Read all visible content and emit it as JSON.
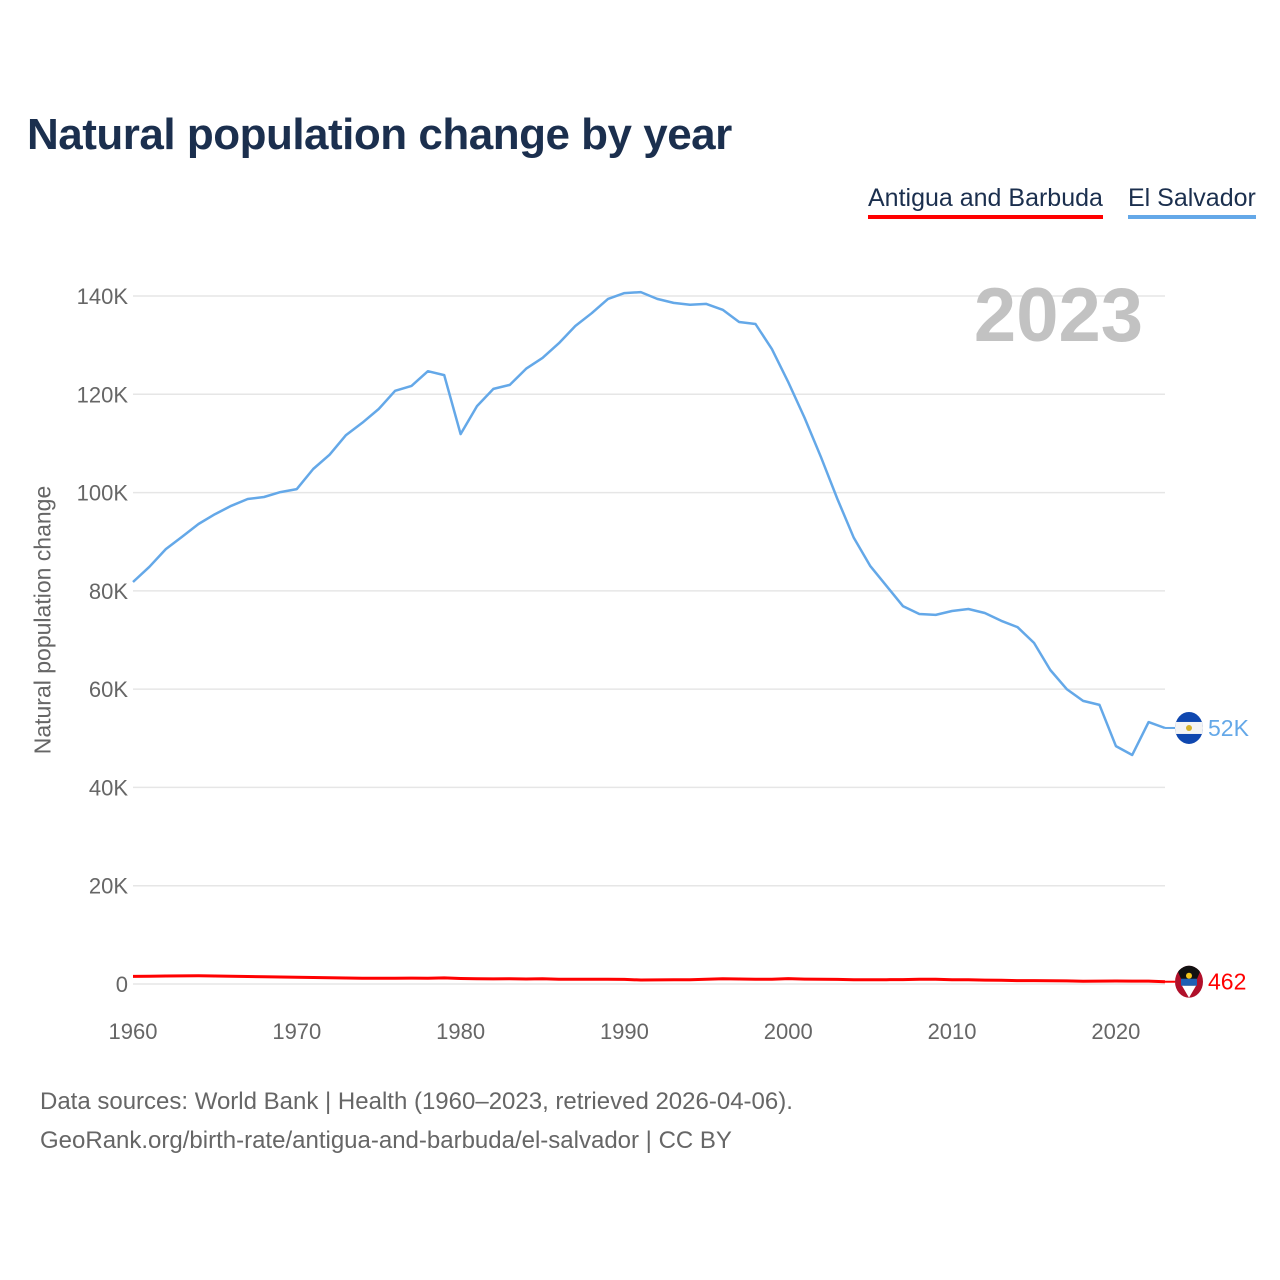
{
  "chart_data": {
    "type": "line",
    "title": "Natural population change by year",
    "xlabel": "",
    "ylabel": "Natural population change",
    "xlim": [
      1960,
      2023
    ],
    "ylim": [
      0,
      140000
    ],
    "grid": true,
    "legend_position": "top-right",
    "x_ticks": [
      "1960",
      "1970",
      "1980",
      "1990",
      "2000",
      "2010",
      "2020"
    ],
    "y_ticks": [
      {
        "v": 0,
        "label": "0"
      },
      {
        "v": 20000,
        "label": "20K"
      },
      {
        "v": 40000,
        "label": "40K"
      },
      {
        "v": 60000,
        "label": "60K"
      },
      {
        "v": 80000,
        "label": "80K"
      },
      {
        "v": 100000,
        "label": "100K"
      },
      {
        "v": 120000,
        "label": "120K"
      },
      {
        "v": 140000,
        "label": "140K"
      }
    ],
    "year_overlay": "2023",
    "x": [
      1960,
      1961,
      1962,
      1963,
      1964,
      1965,
      1966,
      1967,
      1968,
      1969,
      1970,
      1971,
      1972,
      1973,
      1974,
      1975,
      1976,
      1977,
      1978,
      1979,
      1980,
      1981,
      1982,
      1983,
      1984,
      1985,
      1986,
      1987,
      1988,
      1989,
      1990,
      1991,
      1992,
      1993,
      1994,
      1995,
      1996,
      1997,
      1998,
      1999,
      2000,
      2001,
      2002,
      2003,
      2004,
      2005,
      2006,
      2007,
      2008,
      2009,
      2010,
      2011,
      2012,
      2013,
      2014,
      2015,
      2016,
      2017,
      2018,
      2019,
      2020,
      2021,
      2022,
      2023
    ],
    "series": [
      {
        "name": "Antigua and Barbuda",
        "color": "#ff0000",
        "end_label": "462",
        "values": [
          1550,
          1580,
          1620,
          1640,
          1660,
          1620,
          1580,
          1520,
          1470,
          1420,
          1380,
          1330,
          1280,
          1230,
          1180,
          1150,
          1170,
          1200,
          1180,
          1250,
          1120,
          1060,
          1040,
          1080,
          1010,
          1050,
          980,
          960,
          970,
          950,
          930,
          820,
          830,
          850,
          880,
          960,
          1050,
          1010,
          980,
          960,
          1090,
          1000,
          960,
          930,
          880,
          870,
          880,
          890,
          950,
          980,
          880,
          860,
          790,
          760,
          700,
          690,
          660,
          640,
          560,
          580,
          610,
          600,
          580,
          462
        ]
      },
      {
        "name": "El Salvador",
        "color": "#64a8e8",
        "end_label": "52K",
        "values": [
          81800,
          84900,
          88500,
          91000,
          93600,
          95600,
          97300,
          98700,
          99100,
          100100,
          100700,
          104800,
          107700,
          111700,
          114200,
          117000,
          120700,
          121700,
          124700,
          123900,
          111900,
          117600,
          121100,
          121900,
          125200,
          127400,
          130400,
          133900,
          136500,
          139400,
          140600,
          140800,
          139400,
          138600,
          138200,
          138400,
          137200,
          134700,
          134300,
          129200,
          122500,
          115200,
          107200,
          98700,
          90800,
          85100,
          81000,
          76900,
          75300,
          75100,
          75900,
          76300,
          75500,
          73900,
          72600,
          69400,
          63900,
          60000,
          57600,
          56800,
          48400,
          46600,
          53300,
          52100
        ]
      }
    ]
  },
  "legend": [
    "Antigua and Barbuda",
    "El Salvador"
  ],
  "footer": {
    "line1": "Data sources: World Bank | Health (1960–2023, retrieved 2026-04-06).",
    "line2": "GeoRank.org/birth-rate/antigua-and-barbuda/el-salvador | CC BY"
  }
}
